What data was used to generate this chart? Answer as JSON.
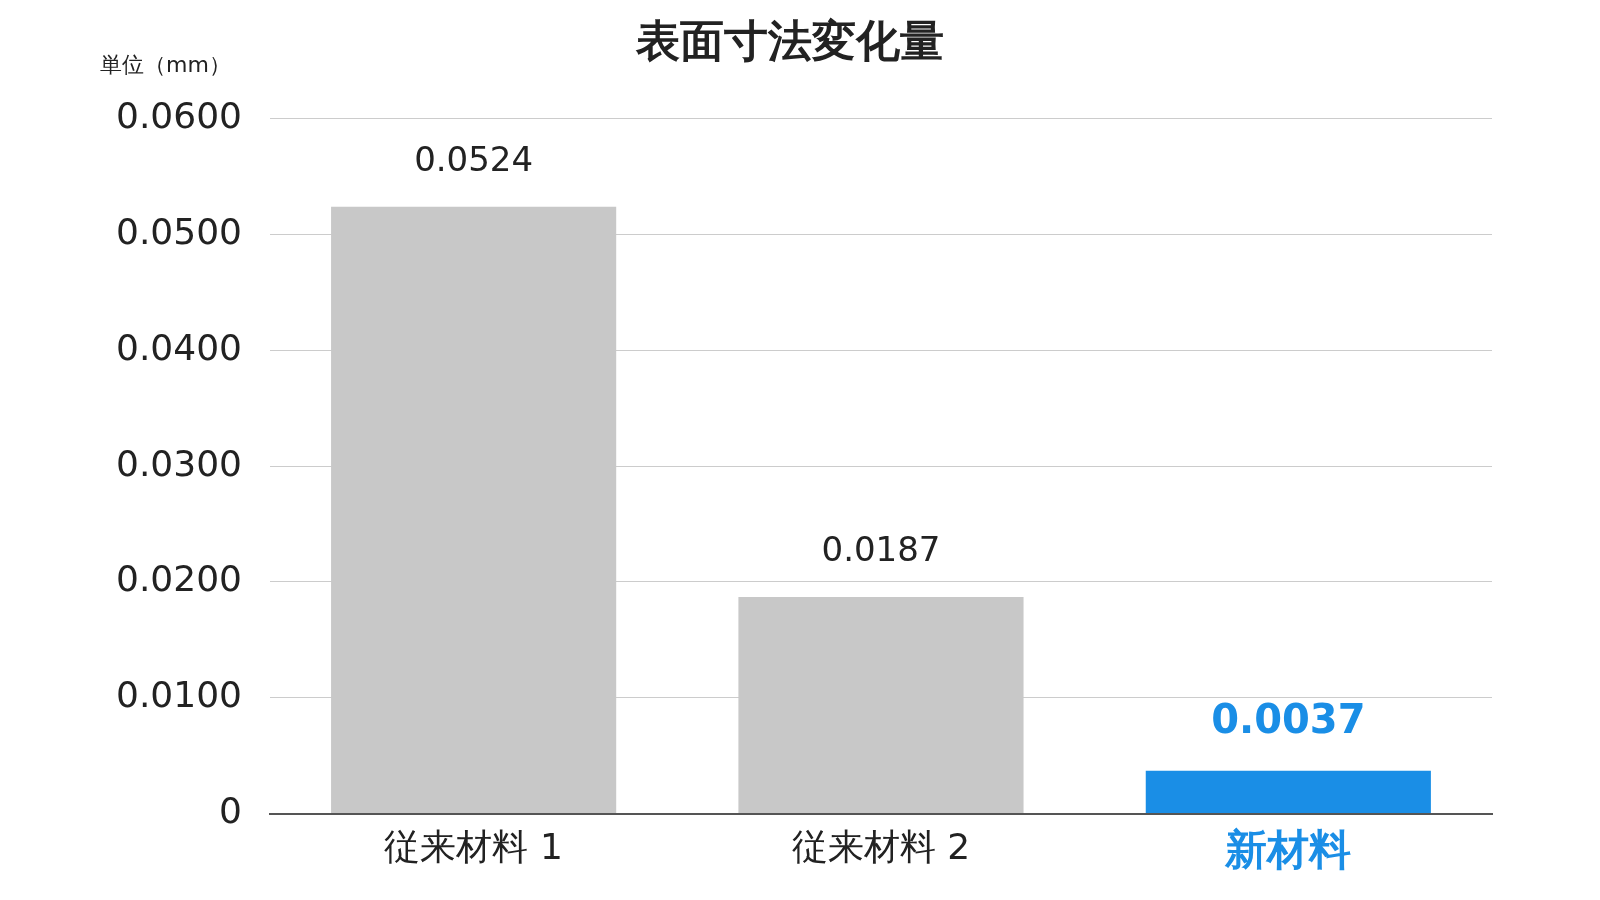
{
  "chart_data": {
    "type": "bar",
    "title": "表面寸法変化量",
    "ylabel": "単位（mm）",
    "categories": [
      "従来材料 1",
      "従来材料 2",
      "新材料"
    ],
    "values": [
      0.0524,
      0.0187,
      0.0037
    ],
    "colors": [
      "#c8c8c8",
      "#c8c8c8",
      "#1a8ee6"
    ],
    "ylim": [
      0,
      0.06
    ],
    "yticks": [
      0,
      {
        "value": 0.01,
        "label": "0.0100"
      },
      {
        "value": 0.02,
        "label": "0.0200"
      },
      {
        "value": 0.03,
        "label": "0.0300"
      },
      {
        "value": 0.04,
        "label": "0.0400"
      },
      {
        "value": 0.05,
        "label": "0.0500"
      },
      {
        "value": 0.06,
        "label": "0.0600"
      }
    ],
    "grid": "y",
    "data_labels": true,
    "legend": false
  }
}
